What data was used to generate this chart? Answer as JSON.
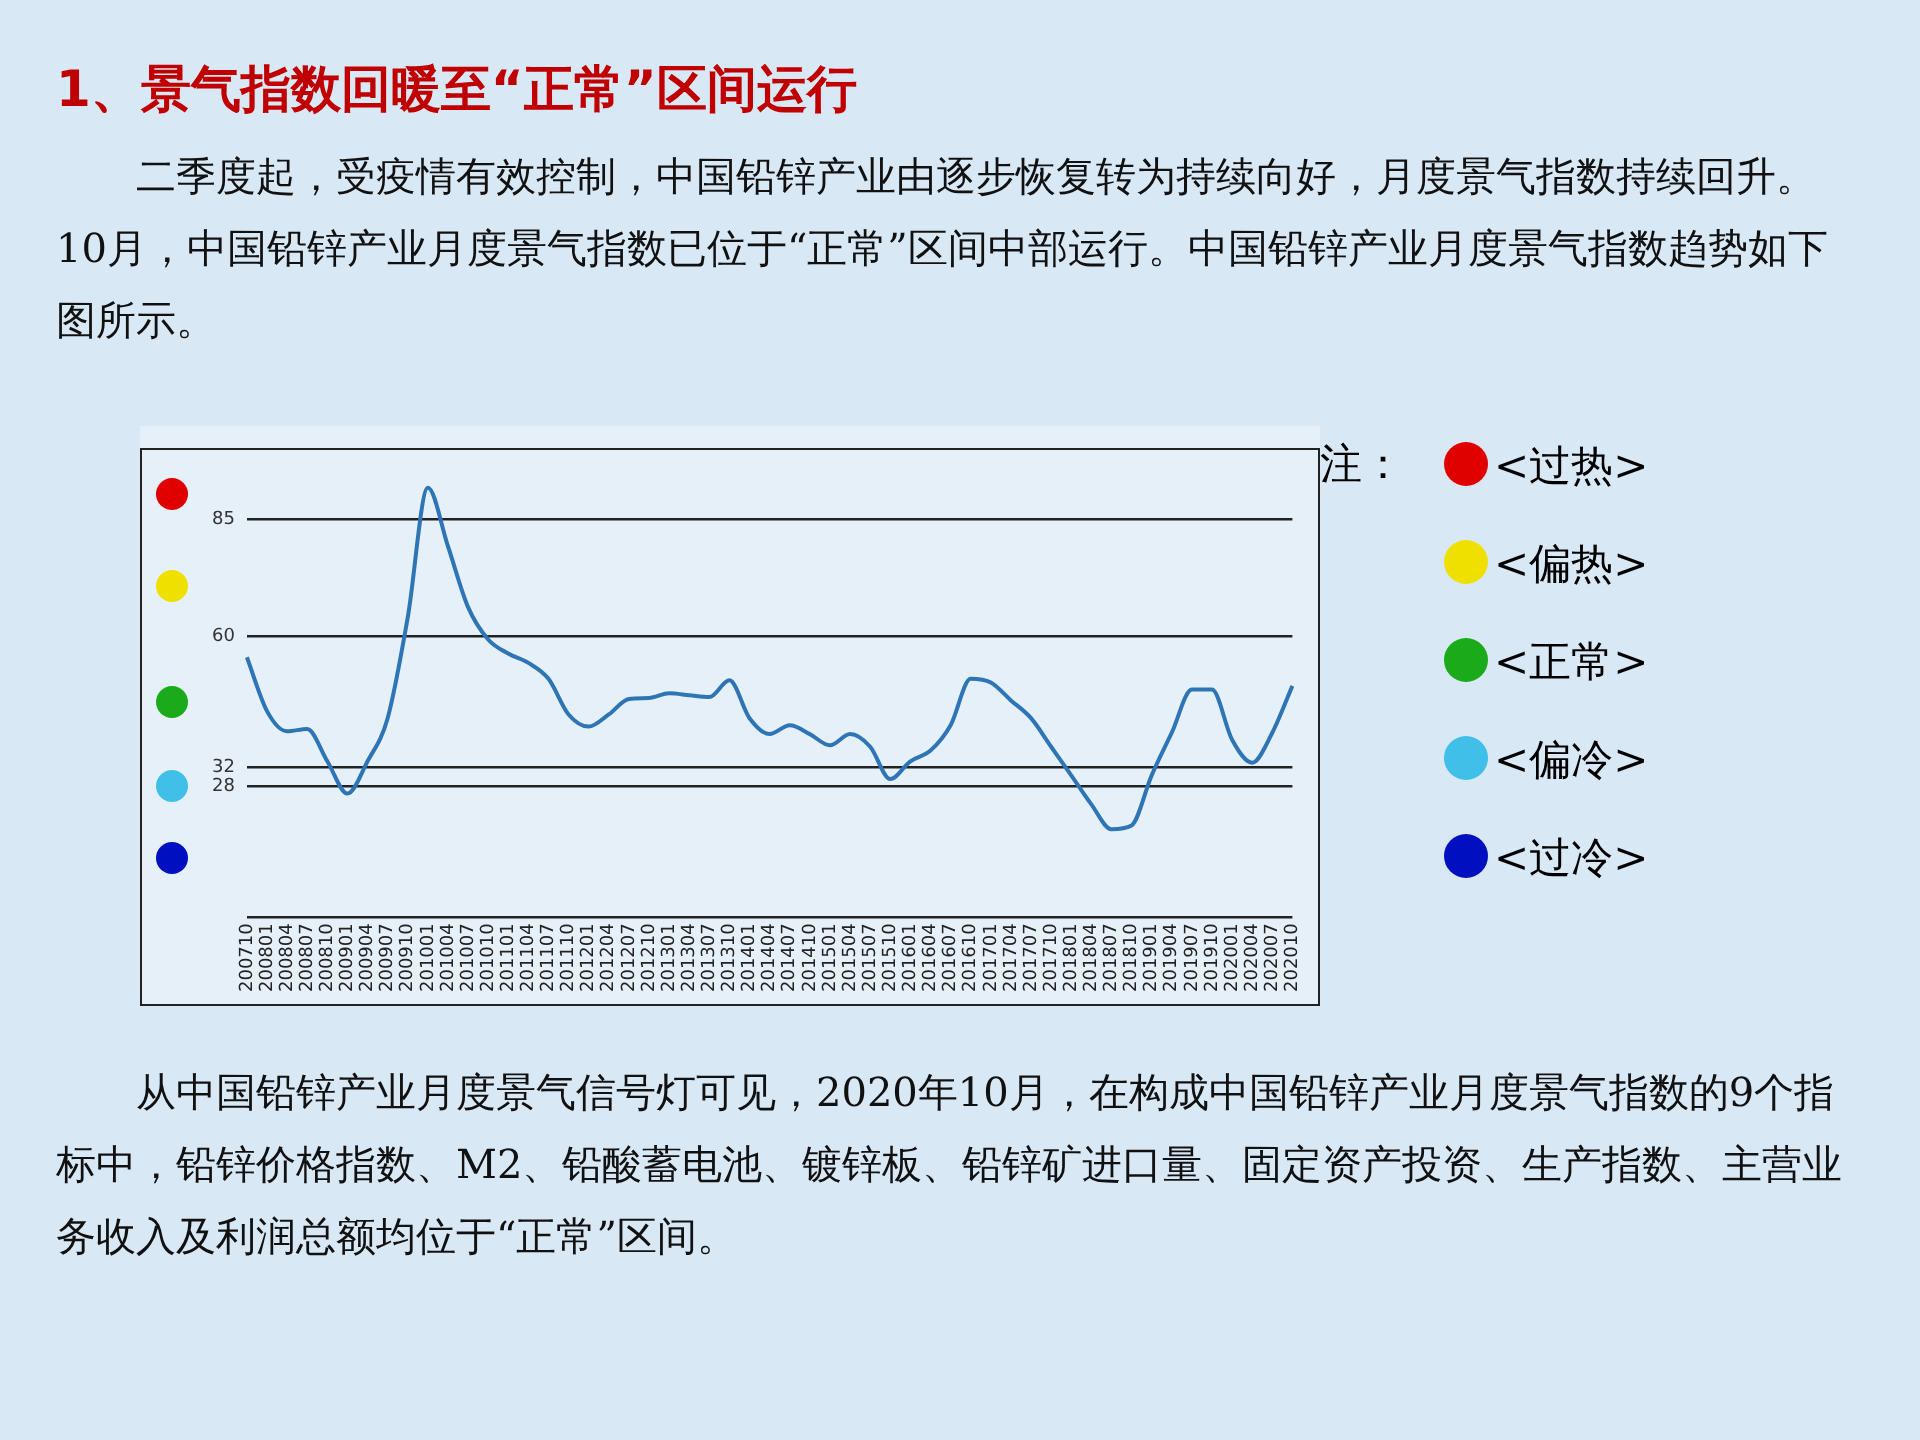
{
  "chart_data": {
    "type": "line",
    "title": "1、景气指数回暖至“正常”区间运行",
    "subtitle": "二季度起，受疫情有效控制，中国铅锌产业由逐步恢复转为持续向好，月度景气指数持续回升。10月，中国铅锌产业月度景气指数已位于“正常”区间中部运行。中国铅锌产业月度景气指数趋势如下图所示。",
    "categories": [
      "200710",
      "200801",
      "200804",
      "200807",
      "200810",
      "200901",
      "200904",
      "200907",
      "200910",
      "201001",
      "201004",
      "201007",
      "201010",
      "201101",
      "201104",
      "201107",
      "201110",
      "201201",
      "201204",
      "201207",
      "201210",
      "201301",
      "201304",
      "201307",
      "201310",
      "201401",
      "201404",
      "201407",
      "201410",
      "201501",
      "201504",
      "201507",
      "201510",
      "201601",
      "201604",
      "201607",
      "201610",
      "201701",
      "201704",
      "201707",
      "201710",
      "201801",
      "201804",
      "201807",
      "201810",
      "201901",
      "201904",
      "201907",
      "201910",
      "202001",
      "202004",
      "202007",
      "202010"
    ],
    "series": [
      {
        "color": "#2e75b6",
        "values": [
          55.5,
          44,
          39.7,
          40.2,
          33.3,
          26.4,
          33.3,
          42.5,
          64,
          91.7,
          79.2,
          66.2,
          59.3,
          56.3,
          54.3,
          50.9,
          43.3,
          40.7,
          43.3,
          46.6,
          46.8,
          47.8,
          47.4,
          47,
          50.6,
          42.5,
          39.1,
          41,
          39.1,
          36.7,
          39.1,
          36.4,
          29.5,
          33.3,
          35.6,
          41,
          50.9,
          50.1,
          46.3,
          42.5,
          36.4,
          30.3,
          24.1,
          18.8,
          19.6,
          30.3,
          39.4,
          48.6,
          48.6,
          37.9,
          33,
          39.4,
          49.4
        ]
      }
    ],
    "ylim": [
      0,
      100
    ],
    "yticks": [
      {
        "value": 0,
        "label": null
      },
      28,
      32,
      60,
      85
    ],
    "grid": "y",
    "legend": false,
    "marker": "none",
    "line_style": "solid",
    "annotations": [
      "注：",
      "<过热>",
      "<偏热>",
      "<正常>",
      "<偏冷>",
      "<过冷>",
      "从中国铅锌产业月度景气信号灯可见，2020年10月，在构成中国铅锌产业月度景气指数的9个指标中，铅锌价格指数、M2、铅酸蓄电池、镀锌板、铅锌矿进口量、固定资产投资、生产指数、主营业务收入及利润总额均位于“正常”区间。"
    ]
  }
}
